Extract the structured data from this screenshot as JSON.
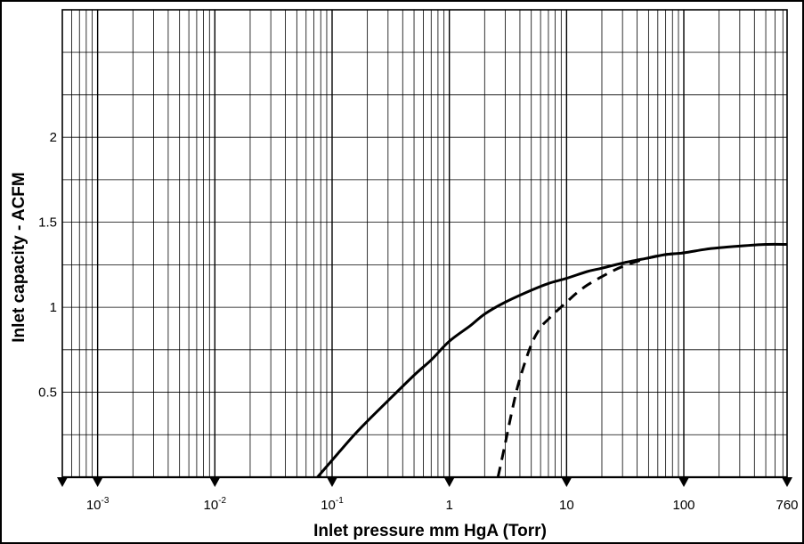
{
  "chart_data": {
    "type": "line",
    "title": "",
    "xlabel": "Inlet pressure mm HgA (Torr)",
    "ylabel": "Inlet capacity - ACFM",
    "x_scale": "log",
    "xlim": [
      0.0005,
      760
    ],
    "ylim": [
      0,
      2.75
    ],
    "x_ticks": [
      {
        "value": 0.001,
        "base": "10",
        "exp": "-3"
      },
      {
        "value": 0.01,
        "base": "10",
        "exp": "-2"
      },
      {
        "value": 0.1,
        "base": "10",
        "exp": "-1"
      },
      {
        "value": 1,
        "base": "1",
        "exp": ""
      },
      {
        "value": 10,
        "base": "10",
        "exp": ""
      },
      {
        "value": 100,
        "base": "100",
        "exp": ""
      },
      {
        "value": 760,
        "base": "760",
        "exp": ""
      }
    ],
    "y_ticks": [
      {
        "value": 0.5,
        "label": "0.5"
      },
      {
        "value": 1,
        "label": "1"
      },
      {
        "value": 1.5,
        "label": "1.5"
      },
      {
        "value": 2,
        "label": "2"
      }
    ],
    "grid": true,
    "legend": "none",
    "series": [
      {
        "style": "solid",
        "x": [
          0.075,
          0.1,
          0.15,
          0.2,
          0.3,
          0.5,
          0.7,
          1,
          1.5,
          2,
          3,
          5,
          7,
          10,
          15,
          20,
          30,
          50,
          70,
          100,
          150,
          200,
          300,
          500,
          760
        ],
        "y": [
          0.0,
          0.1,
          0.24,
          0.33,
          0.45,
          0.6,
          0.69,
          0.8,
          0.89,
          0.96,
          1.03,
          1.1,
          1.14,
          1.17,
          1.21,
          1.23,
          1.26,
          1.29,
          1.31,
          1.32,
          1.34,
          1.35,
          1.36,
          1.37,
          1.37
        ]
      },
      {
        "style": "dashed",
        "x": [
          2.6,
          3,
          3.5,
          4,
          5,
          6,
          7,
          8,
          10,
          12,
          15,
          20,
          30,
          50,
          70,
          100
        ],
        "y": [
          0.0,
          0.2,
          0.42,
          0.58,
          0.78,
          0.88,
          0.93,
          0.97,
          1.03,
          1.08,
          1.13,
          1.18,
          1.24,
          1.29,
          1.31,
          1.32
        ]
      }
    ]
  }
}
